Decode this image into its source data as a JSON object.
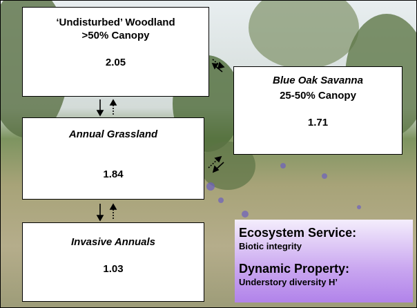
{
  "nodes": [
    {
      "title": "‘Undisturbed’ Woodland",
      "subtitle": ">50% Canopy",
      "value": 2.05
    },
    {
      "title": "Blue Oak Savanna",
      "subtitle": "25-50% Canopy",
      "value": 1.71
    },
    {
      "title": "Annual Grassland",
      "value": 1.84
    },
    {
      "title": "Invasive Annuals",
      "value": 1.03
    }
  ],
  "legend": {
    "heading1": "Ecosystem Service:",
    "text1": "Biotic integrity",
    "heading2": "Dynamic Property:",
    "text2": "Understory diversity H’"
  }
}
